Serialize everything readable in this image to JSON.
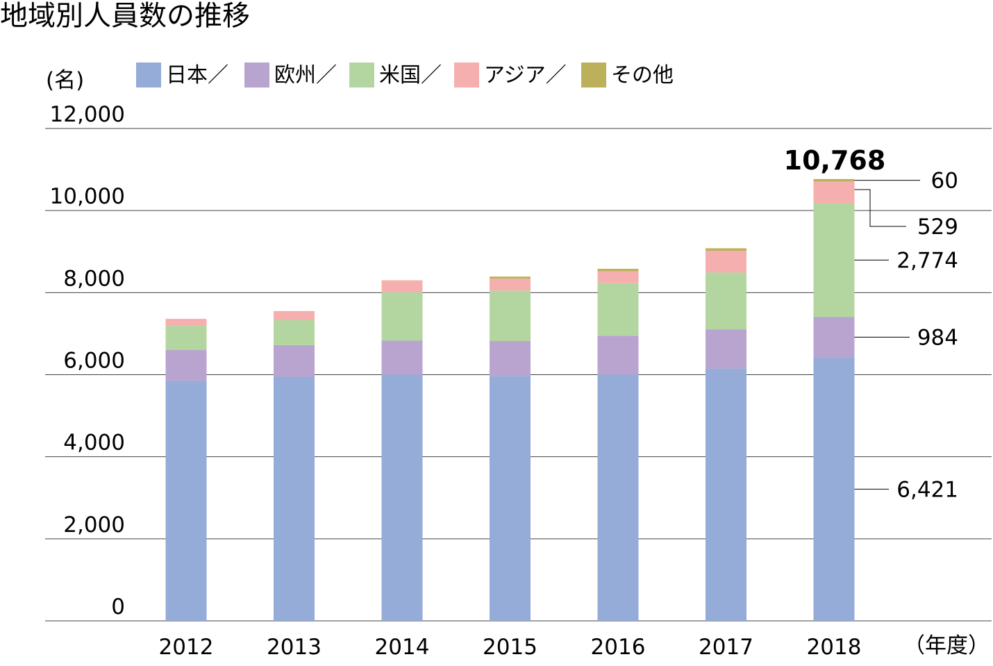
{
  "title": "地域別人員数の推移",
  "chart_data": {
    "type": "bar",
    "stacked": true,
    "ylabel": "(名)",
    "xlabel": "（年度）",
    "ylim": [
      0,
      12000
    ],
    "yticks": [
      "0",
      "2,000",
      "4,000",
      "6,000",
      "8,000",
      "10,000",
      "12,000"
    ],
    "categories": [
      "2012",
      "2013",
      "2014",
      "2015",
      "2016",
      "2017",
      "2018"
    ],
    "series": [
      {
        "name": "日本／",
        "color": "#95ABD8",
        "values": [
          5850,
          5950,
          6000,
          5970,
          6000,
          6150,
          6421
        ]
      },
      {
        "name": "欧州／",
        "color": "#B8A4CF",
        "values": [
          750,
          770,
          830,
          850,
          950,
          950,
          984
        ]
      },
      {
        "name": "米国／",
        "color": "#B3D6A1",
        "values": [
          590,
          610,
          1180,
          1230,
          1280,
          1390,
          2774
        ]
      },
      {
        "name": "アジア／",
        "color": "#F4AFAE",
        "values": [
          170,
          220,
          290,
          290,
          290,
          530,
          529
        ]
      },
      {
        "name": "その他",
        "color": "#BDB05B",
        "values": [
          0,
          0,
          0,
          50,
          60,
          60,
          60
        ]
      }
    ],
    "total_label": "10,768",
    "annotations": [
      "60",
      "529",
      "2,774",
      "984",
      "6,421"
    ],
    "grid": true,
    "legend": "top"
  }
}
